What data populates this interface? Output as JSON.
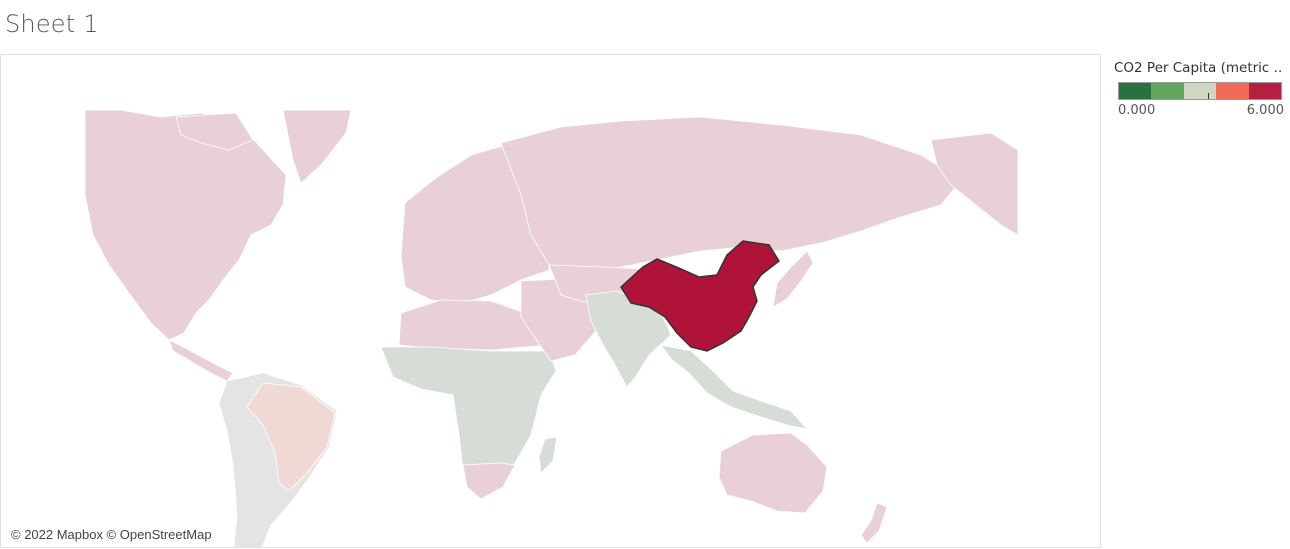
{
  "sheet": {
    "title": "Sheet 1"
  },
  "map": {
    "attribution": "© 2022 Mapbox © OpenStreetMap",
    "highlighted_country": "China",
    "highlight_color": "#b01338",
    "land_color": "#e8d0d6",
    "low_color": "#d6ddd6",
    "mid_color": "#f0d8d4",
    "neutral_color": "#e4e4e4",
    "ocean_color": "#ffffff"
  },
  "legend": {
    "title": "CO2 Per Capita (metric ..",
    "min_label": "0.000",
    "max_label": "6.000",
    "min_value": 0,
    "max_value": 6,
    "marker_value": 3.3,
    "colors": [
      "#2a7040",
      "#62a85c",
      "#cfd8c4",
      "#f06a55",
      "#b51f42"
    ]
  }
}
